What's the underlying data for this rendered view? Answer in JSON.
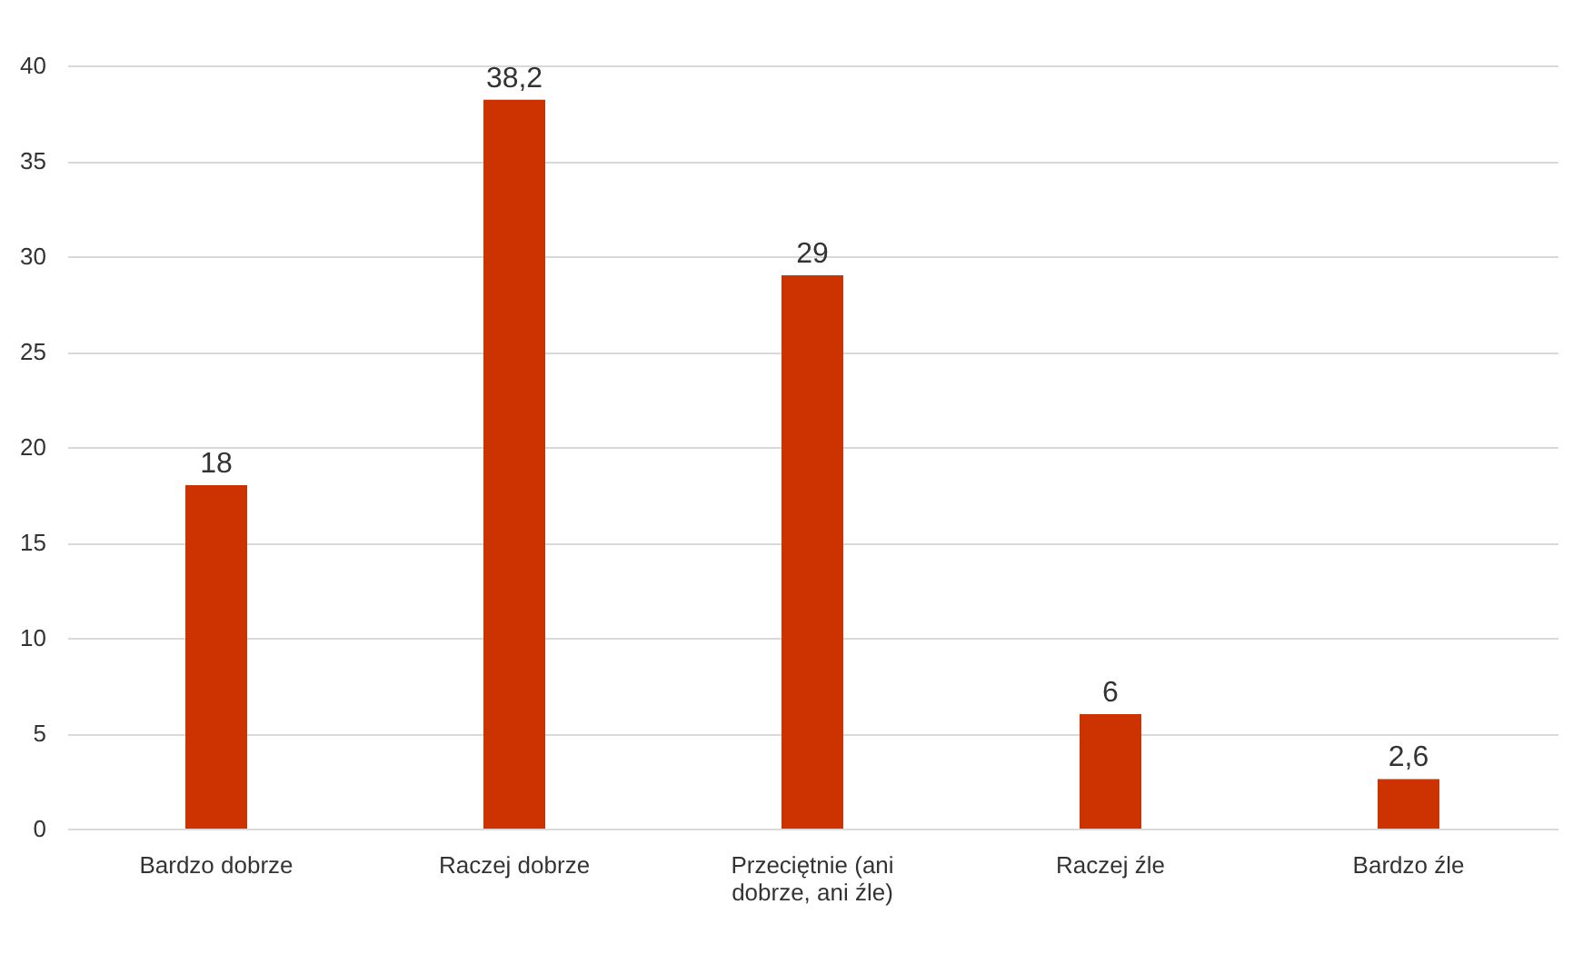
{
  "chart_data": {
    "type": "bar",
    "categories": [
      "Bardzo dobrze",
      "Raczej dobrze",
      "Przeciętnie (ani dobrze, ani źle)",
      "Raczej źle",
      "Bardzo źle"
    ],
    "values": [
      18,
      38.2,
      29,
      6,
      2.6
    ],
    "value_labels": [
      "18",
      "38,2",
      "29",
      "6",
      "2,6"
    ],
    "color": "#cc3300",
    "ylim": [
      0,
      40
    ],
    "yticks": [
      0,
      5,
      10,
      15,
      20,
      25,
      30,
      35,
      40
    ],
    "grid": "y"
  }
}
